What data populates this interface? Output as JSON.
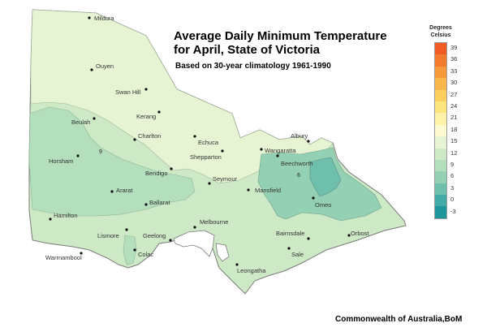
{
  "title_line1": "Average Daily Minimum Temperature",
  "title_line2": "for April, State of Victoria",
  "subtitle": "Based on 30-year climatology 1961-1990",
  "legend": {
    "title_line1": "Degrees",
    "title_line2": "Celsius",
    "ticks": [
      "39",
      "36",
      "33",
      "30",
      "27",
      "24",
      "21",
      "18",
      "15",
      "12",
      "9",
      "6",
      "3",
      "0",
      "-3"
    ],
    "colors": [
      "#f05a24",
      "#f47a2e",
      "#f79a3b",
      "#f9b64b",
      "#fbcf5e",
      "#fde57e",
      "#fef3a8",
      "#fefbd0",
      "#e6f4d4",
      "#cde9c6",
      "#b3dfbd",
      "#94d0b4",
      "#6fbfad",
      "#44aaa5",
      "#1f969c"
    ]
  },
  "isotherm_labels": [
    "9",
    "6"
  ],
  "towns": [
    {
      "name": "Mildura"
    },
    {
      "name": "Ouyen"
    },
    {
      "name": "Swan Hill"
    },
    {
      "name": "Kerang"
    },
    {
      "name": "Beulah"
    },
    {
      "name": "Charlton"
    },
    {
      "name": "Echuca"
    },
    {
      "name": "Albury"
    },
    {
      "name": "Wangaratta"
    },
    {
      "name": "Beechworth"
    },
    {
      "name": "Shepparton"
    },
    {
      "name": "Horsham"
    },
    {
      "name": "Bendigo"
    },
    {
      "name": "Seymour"
    },
    {
      "name": "Ararat"
    },
    {
      "name": "Mansfield"
    },
    {
      "name": "Omeo"
    },
    {
      "name": "Ballarat"
    },
    {
      "name": "Hamilton"
    },
    {
      "name": "Melbourne"
    },
    {
      "name": "Lismore"
    },
    {
      "name": "Geelong"
    },
    {
      "name": "Colac"
    },
    {
      "name": "Bairnsdale"
    },
    {
      "name": "Orbost"
    },
    {
      "name": "Warrnambool"
    },
    {
      "name": "Sale"
    },
    {
      "name": "Leongatha"
    }
  ],
  "credit": "Commonwealth of Australia,BoM"
}
